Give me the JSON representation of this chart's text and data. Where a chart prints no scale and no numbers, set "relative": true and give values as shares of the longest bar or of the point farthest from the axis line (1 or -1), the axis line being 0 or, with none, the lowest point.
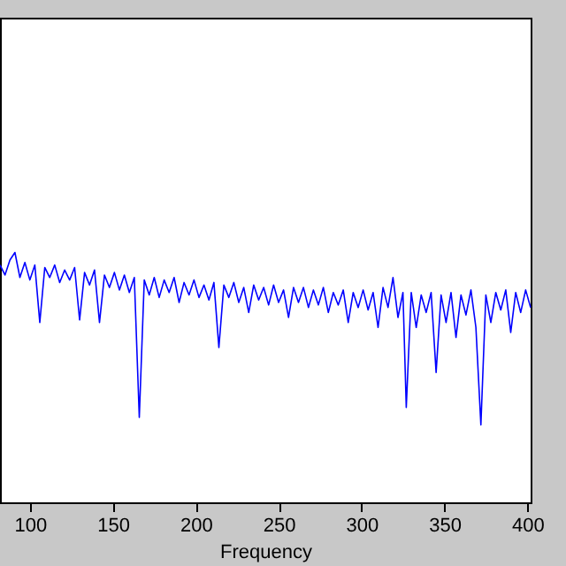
{
  "chart_data": {
    "type": "line",
    "xlabel": "Frequency",
    "relative": true,
    "xlim": [
      82,
      402
    ],
    "xticks": [
      100,
      150,
      200,
      250,
      300,
      350,
      400
    ],
    "grid": false,
    "marker": "none",
    "line_style": "solid",
    "x": [
      82,
      85,
      88,
      91,
      94,
      97,
      100,
      103,
      106,
      109,
      112,
      115,
      118,
      121,
      124,
      127,
      130,
      133,
      136,
      139,
      142,
      145,
      148,
      151,
      154,
      157,
      160,
      163,
      166,
      169,
      172,
      175,
      178,
      181,
      184,
      187,
      190,
      193,
      196,
      199,
      202,
      205,
      208,
      211,
      214,
      217,
      220,
      223,
      226,
      229,
      232,
      235,
      238,
      241,
      244,
      247,
      250,
      253,
      256,
      259,
      262,
      265,
      268,
      271,
      274,
      277,
      280,
      283,
      286,
      289,
      292,
      295,
      298,
      301,
      304,
      307,
      310,
      313,
      316,
      319,
      322,
      325,
      327,
      330,
      333,
      336,
      339,
      342,
      345,
      348,
      351,
      354,
      357,
      360,
      363,
      366,
      369,
      372,
      375,
      378,
      381,
      384,
      387,
      390,
      393,
      396,
      399,
      402
    ],
    "series": [
      {
        "color": "#0000ff",
        "values": [
          0.95,
          0.91,
          0.97,
          1.0,
          0.9,
          0.96,
          0.89,
          0.95,
          0.72,
          0.94,
          0.9,
          0.95,
          0.88,
          0.93,
          0.89,
          0.94,
          0.73,
          0.92,
          0.87,
          0.93,
          0.72,
          0.91,
          0.86,
          0.92,
          0.85,
          0.91,
          0.84,
          0.9,
          0.34,
          0.89,
          0.83,
          0.9,
          0.82,
          0.89,
          0.84,
          0.9,
          0.8,
          0.88,
          0.83,
          0.89,
          0.82,
          0.87,
          0.81,
          0.88,
          0.62,
          0.87,
          0.82,
          0.88,
          0.8,
          0.86,
          0.76,
          0.87,
          0.81,
          0.86,
          0.79,
          0.87,
          0.8,
          0.85,
          0.74,
          0.86,
          0.8,
          0.86,
          0.78,
          0.85,
          0.79,
          0.86,
          0.76,
          0.84,
          0.79,
          0.85,
          0.72,
          0.84,
          0.78,
          0.85,
          0.77,
          0.84,
          0.7,
          0.86,
          0.78,
          0.9,
          0.74,
          0.84,
          0.38,
          0.84,
          0.7,
          0.83,
          0.76,
          0.84,
          0.52,
          0.83,
          0.72,
          0.84,
          0.66,
          0.83,
          0.75,
          0.85,
          0.7,
          0.31,
          0.83,
          0.72,
          0.84,
          0.77,
          0.85,
          0.68,
          0.84,
          0.76,
          0.85,
          0.78
        ]
      }
    ]
  }
}
